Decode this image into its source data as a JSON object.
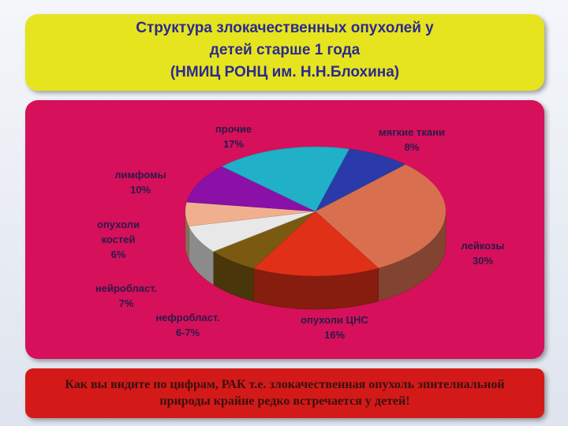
{
  "chart_data": {
    "type": "pie",
    "title": "Структура злокачественных  опухолей у\nдетей старше 1 года\n(НМИЦ РОНЦ им. Н.Н.Блохина)",
    "categories": [
      "мягкие ткани",
      "лейкозы",
      "опухоли ЦНС",
      "нефробласт.",
      "нейробласт.",
      "опухоли костей",
      "лимфомы",
      "прочие"
    ],
    "values": [
      8,
      30,
      16,
      6.5,
      7,
      6,
      10,
      17
    ],
    "value_labels": [
      "8%",
      "30%",
      "16%",
      "6-7%",
      "7%",
      "6%",
      "10%",
      "17%"
    ],
    "colors": [
      "#2a3aa8",
      "#d87050",
      "#e03018",
      "#7a5a10",
      "#e8e8e8",
      "#f0b090",
      "#8a10a8",
      "#20b0c8"
    ]
  },
  "footer_text": "Как вы видите по цифрам, РАК т.е. злокачественная опухоль эпителиальной природы крайне редко встречается у детей!"
}
